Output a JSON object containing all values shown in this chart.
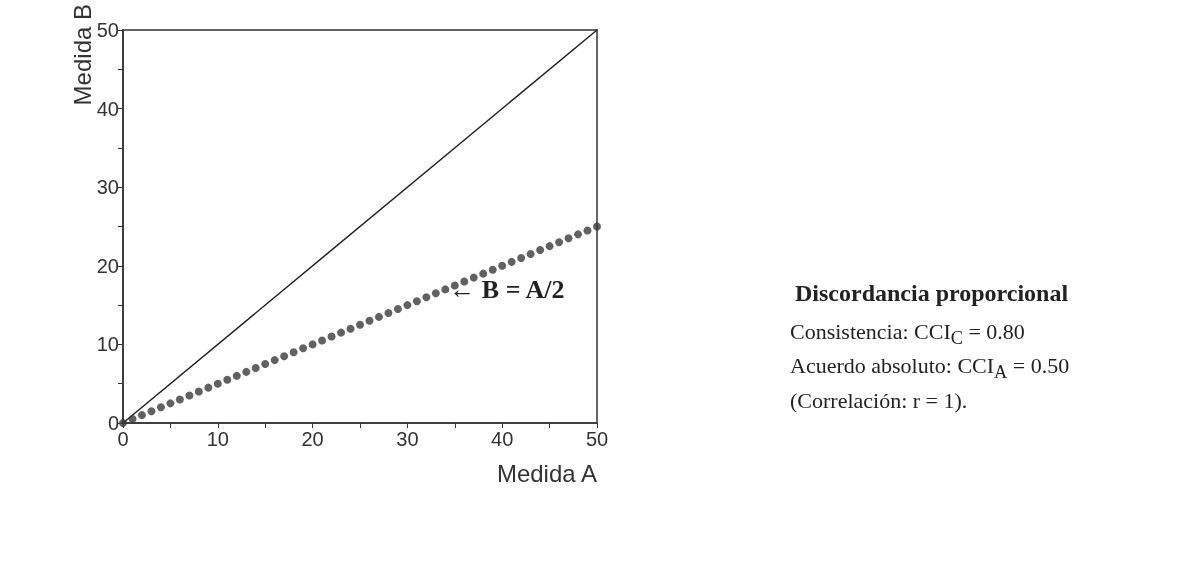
{
  "chart_data": {
    "type": "scatter",
    "title": "Discordancia proporcional",
    "xlabel": "Medida A",
    "ylabel": "Medida B",
    "xlim": [
      0,
      50
    ],
    "ylim": [
      0,
      50
    ],
    "xticks": [
      0,
      {
        "value": 5,
        "label": null
      },
      10,
      {
        "value": 15,
        "label": null
      },
      20,
      {
        "value": 25,
        "label": null
      },
      30,
      {
        "value": 35,
        "label": null
      },
      40,
      {
        "value": 45,
        "label": null
      },
      50
    ],
    "yticks": [
      0,
      {
        "value": 5,
        "label": null
      },
      10,
      {
        "value": 15,
        "label": null
      },
      20,
      {
        "value": 25,
        "label": null
      },
      30,
      {
        "value": 35,
        "label": null
      },
      40,
      {
        "value": 45,
        "label": null
      },
      50
    ],
    "grid": false,
    "series": [
      {
        "type": "line",
        "color": "#222222",
        "marker": "none",
        "line_style": "solid",
        "x": [
          0,
          50
        ],
        "values": [
          0,
          50
        ]
      },
      {
        "color": "#3a3a3a",
        "marker": "circle",
        "x": [
          0,
          1,
          2,
          3,
          4,
          5,
          6,
          7,
          8,
          9,
          10,
          11,
          12,
          13,
          14,
          15,
          16,
          17,
          18,
          19,
          20,
          21,
          22,
          23,
          24,
          25,
          26,
          27,
          28,
          29,
          30,
          31,
          32,
          33,
          34,
          35,
          36,
          37,
          38,
          39,
          40,
          41,
          42,
          43,
          44,
          45,
          46,
          47,
          48,
          49,
          50
        ],
        "values": [
          0,
          0.5,
          1,
          1.5,
          2,
          2.5,
          3,
          3.5,
          4,
          4.5,
          5,
          5.5,
          6,
          6.5,
          7,
          7.5,
          8,
          8.5,
          9,
          9.5,
          10,
          10.5,
          11,
          11.5,
          12,
          12.5,
          13,
          13.5,
          14,
          14.5,
          15,
          15.5,
          16,
          16.5,
          17,
          17.5,
          18,
          18.5,
          19,
          19.5,
          20,
          20.5,
          21,
          21.5,
          22,
          22.5,
          23,
          23.5,
          24,
          24.5,
          25
        ]
      }
    ],
    "annotations": [
      {
        "text": "← B = A/2",
        "x": 34,
        "y": 17
      },
      "Consistencia: CCI$_{C}$ = 0.80",
      "Acuerdo absoluto: CCI$_{A}$ = 0.50",
      "(Correlación: r = 1)."
    ]
  }
}
